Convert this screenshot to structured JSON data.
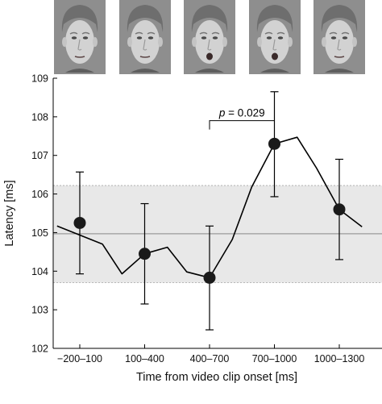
{
  "chart_data": {
    "type": "line",
    "title": "",
    "xlabel": "Time from video clip onset [ms]",
    "ylabel": "Latency [ms]",
    "ylim": [
      102,
      109
    ],
    "yticks": [
      102,
      103,
      104,
      105,
      106,
      107,
      108,
      109
    ],
    "categories": [
      "−200–100",
      "100–400",
      "400–700",
      "700–1000",
      "1000–1300"
    ],
    "means": [
      105.25,
      104.45,
      103.83,
      107.3,
      105.6
    ],
    "error_upper": [
      106.57,
      105.75,
      105.17,
      108.65,
      106.9
    ],
    "error_lower": [
      103.93,
      103.15,
      102.48,
      105.93,
      104.3
    ],
    "line_series": {
      "x": [
        -0.35,
        0.35,
        0.65,
        1.0,
        1.35,
        1.65,
        2.0,
        2.35,
        2.65,
        3.0,
        3.35,
        3.65,
        4.0,
        4.35
      ],
      "values": [
        105.17,
        104.7,
        103.93,
        104.45,
        104.62,
        103.98,
        103.83,
        104.82,
        106.18,
        107.3,
        107.47,
        106.67,
        105.6,
        105.15
      ]
    },
    "baseline": {
      "mean": 104.97,
      "lower": 103.7,
      "upper": 106.22
    },
    "significance": {
      "text": "p = 0.029",
      "between": [
        2,
        3
      ],
      "y": 107.9
    }
  },
  "faces": [
    {
      "name": "face-neutral-1",
      "mouth": "closed"
    },
    {
      "name": "face-neutral-2",
      "mouth": "closed"
    },
    {
      "name": "face-mouth-opening",
      "mouth": "open"
    },
    {
      "name": "face-mouth-open",
      "mouth": "open"
    },
    {
      "name": "face-neutral-3",
      "mouth": "closed"
    }
  ],
  "colors": {
    "band": "#e8e8e8",
    "baseline": "#9a9a9a",
    "line": "#000000",
    "marker": "#1a1a1a"
  }
}
